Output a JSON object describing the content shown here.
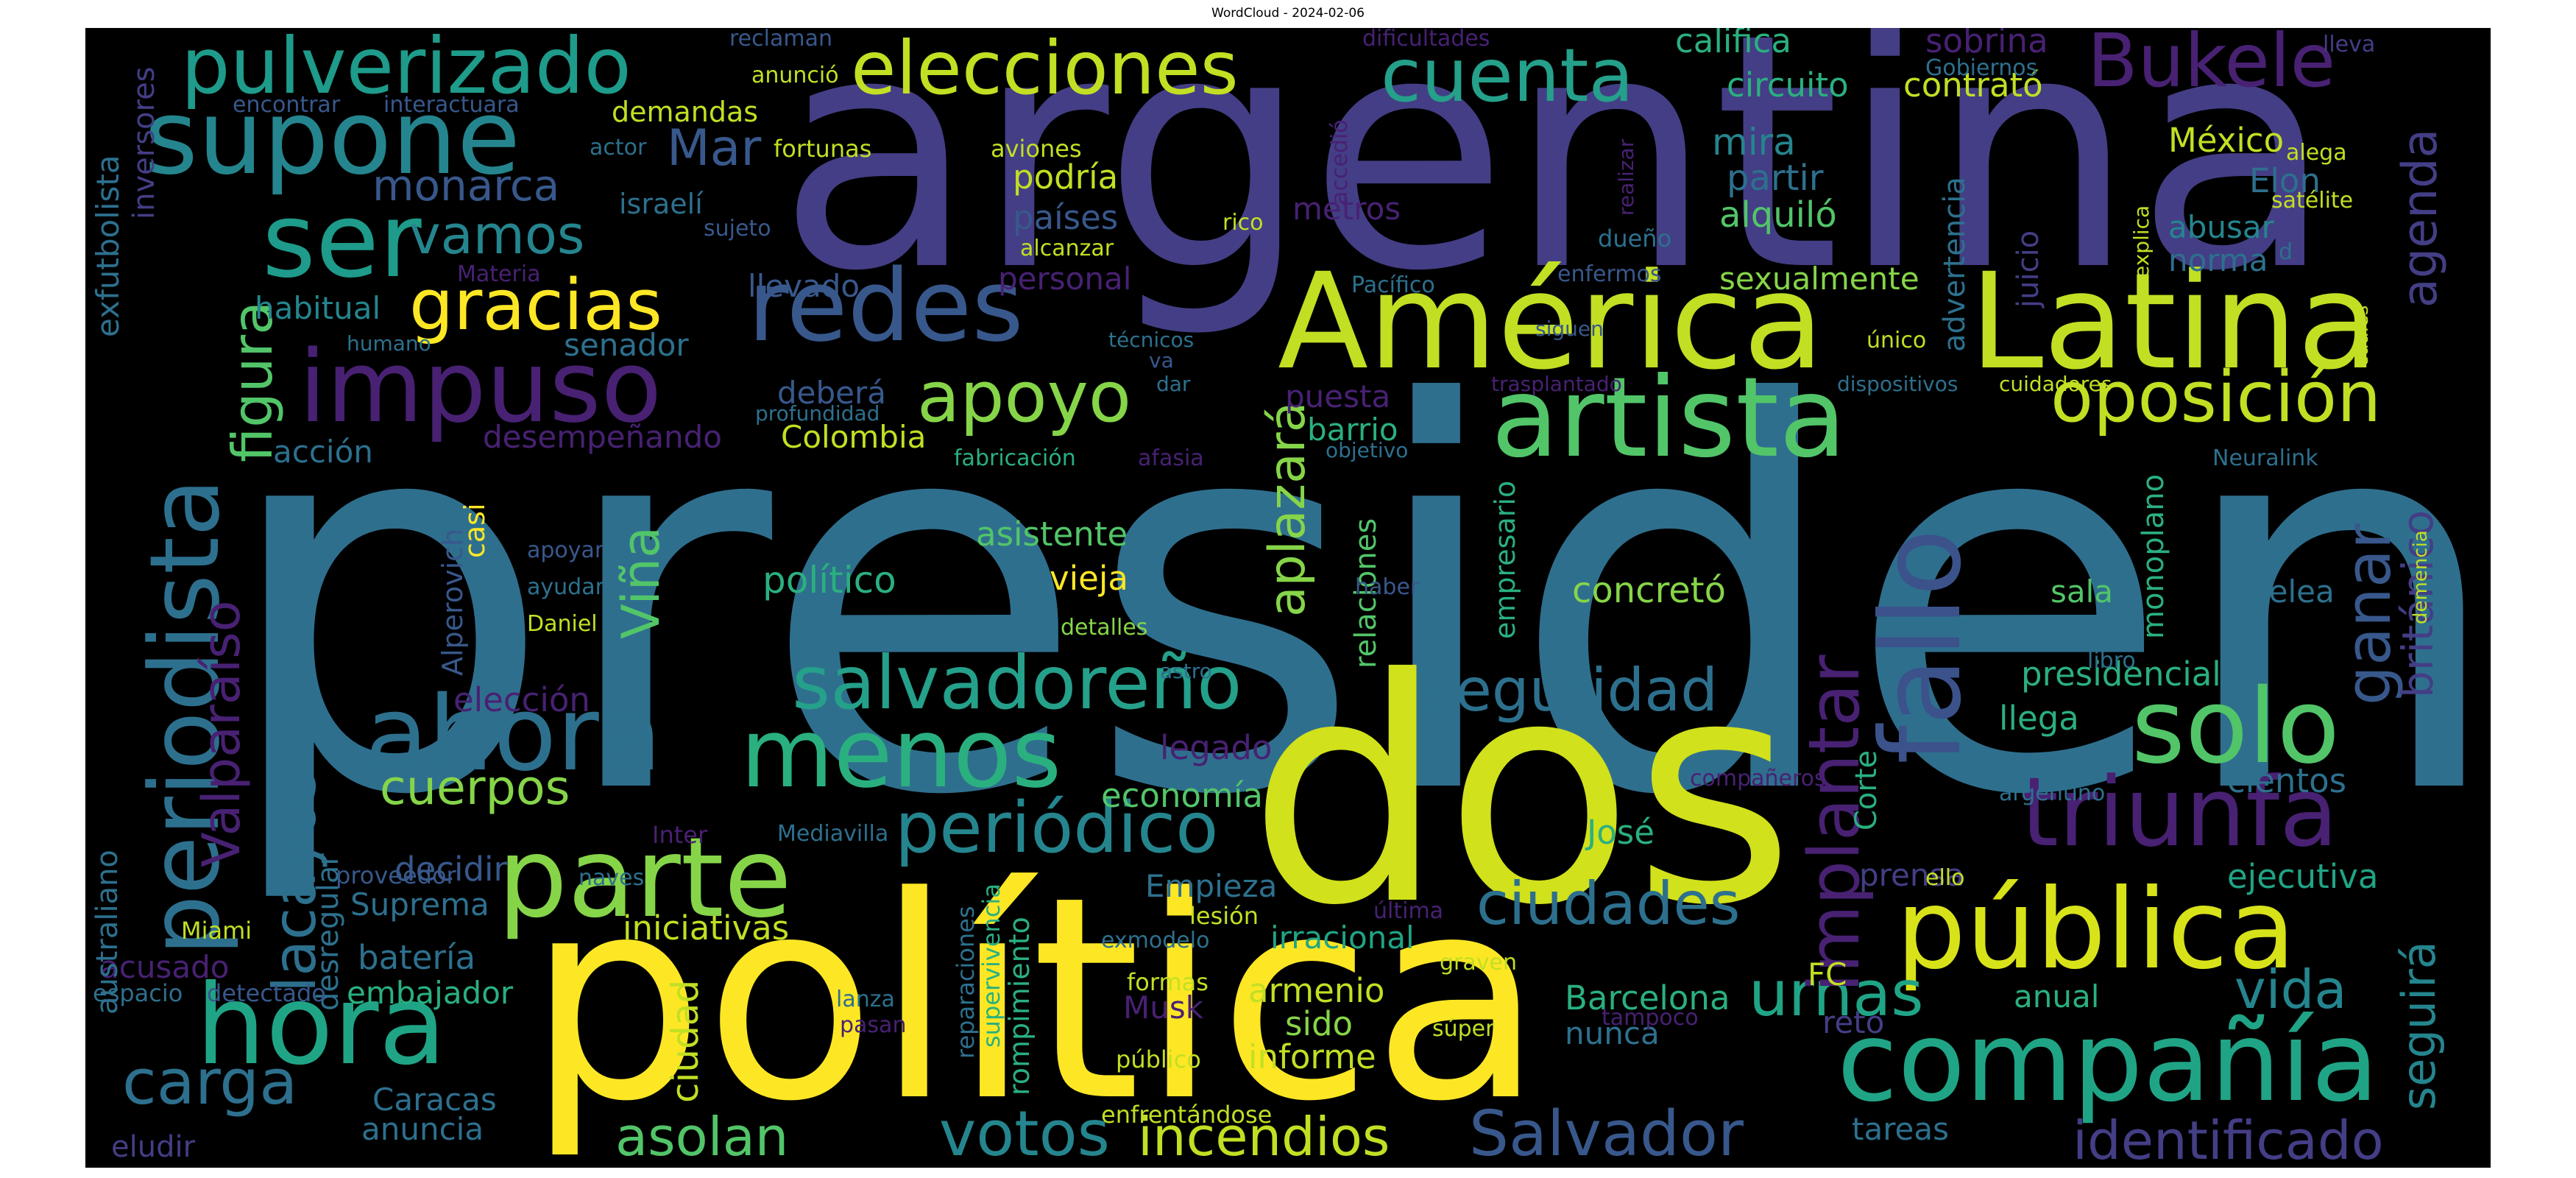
{
  "title": "WordCloud - 2024-02-06",
  "palette": [
    "#fde725",
    "#c2df23",
    "#86d549",
    "#52c569",
    "#2ab07f",
    "#1e9b8a",
    "#25858e",
    "#2d708e",
    "#38588c",
    "#433e85",
    "#482173",
    "#440154"
  ],
  "words": [
    {
      "text": "presidente",
      "color": "#2f6f8e"
    },
    {
      "text": "argentina",
      "color": "#433e85"
    },
    {
      "text": "política",
      "color": "#fde725"
    },
    {
      "text": "dos",
      "color": "#d1e11c"
    },
    {
      "text": "América",
      "color": "#c2df23"
    },
    {
      "text": "Latina",
      "color": "#c2df23"
    },
    {
      "text": "artista",
      "color": "#52c569"
    },
    {
      "text": "compañía",
      "color": "#20a486"
    },
    {
      "text": "pública",
      "color": "#d8e219"
    },
    {
      "text": "parte",
      "color": "#86d549"
    },
    {
      "text": "hora",
      "color": "#20a486"
    },
    {
      "text": "ahora",
      "color": "#2d708e"
    },
    {
      "text": "menos",
      "color": "#2ab07f"
    },
    {
      "text": "redes",
      "color": "#38588c"
    },
    {
      "text": "impuso",
      "color": "#482173"
    },
    {
      "text": "periodista",
      "color": "#2d708e"
    },
    {
      "text": "supone",
      "color": "#25858e"
    },
    {
      "text": "pulverizado",
      "color": "#1e9b8a"
    },
    {
      "text": "elecciones",
      "color": "#c2df23"
    },
    {
      "text": "cuenta",
      "color": "#25a08a"
    },
    {
      "text": "Bukele",
      "color": "#482173"
    },
    {
      "text": "ser",
      "color": "#1e9b8a"
    },
    {
      "text": "fallo",
      "color": "#3b528b"
    },
    {
      "text": "solo",
      "color": "#52c569"
    },
    {
      "text": "triunfa",
      "color": "#482173"
    },
    {
      "text": "oposición",
      "color": "#c2df23"
    },
    {
      "text": "salvadoreño",
      "color": "#25a08a"
    },
    {
      "text": "periódico",
      "color": "#25858e"
    },
    {
      "text": "votos",
      "color": "#25858e"
    },
    {
      "text": "Salvador",
      "color": "#38588c"
    },
    {
      "text": "urnas",
      "color": "#20a486"
    },
    {
      "text": "carga",
      "color": "#2d708e"
    },
    {
      "text": "apoyo",
      "color": "#86d549"
    },
    {
      "text": "gracias",
      "color": "#fde725"
    },
    {
      "text": "vamos",
      "color": "#25858e"
    },
    {
      "text": "incendios",
      "color": "#c2df23"
    },
    {
      "text": "asolan",
      "color": "#52c569"
    },
    {
      "text": "implantar",
      "color": "#482173"
    },
    {
      "text": "ganar",
      "color": "#38588c"
    },
    {
      "text": "identificado",
      "color": "#433e85"
    },
    {
      "text": "seguridad",
      "color": "#2d708e"
    },
    {
      "text": "ciudades",
      "color": "#2d708e"
    },
    {
      "text": "vida",
      "color": "#25858e"
    },
    {
      "text": "agenda",
      "color": "#433e85"
    },
    {
      "text": "británico",
      "color": "#433e85"
    },
    {
      "text": "seguirá",
      "color": "#25858e"
    },
    {
      "text": "lacayos",
      "color": "#2d708e"
    },
    {
      "text": "figura",
      "color": "#52c569"
    },
    {
      "text": "Valparaíso",
      "color": "#482173"
    },
    {
      "text": "cuerpos",
      "color": "#86d549"
    },
    {
      "text": "monarca",
      "color": "#38588c"
    },
    {
      "text": "Mar",
      "color": "#38588c"
    },
    {
      "text": "aplazará",
      "color": "#86d549"
    },
    {
      "text": "Viña",
      "color": "#52c569"
    },
    {
      "text": "califica",
      "color": "#2ab07f"
    },
    {
      "text": "sobrina",
      "color": "#482173"
    },
    {
      "text": "circuito",
      "color": "#2ab07f"
    },
    {
      "text": "contrató",
      "color": "#c2df23"
    },
    {
      "text": "mira",
      "color": "#25858e"
    },
    {
      "text": "partir",
      "color": "#2d708e"
    },
    {
      "text": "alquiló",
      "color": "#52c569"
    },
    {
      "text": "México",
      "color": "#c2df23"
    },
    {
      "text": "Elon",
      "color": "#2d708e"
    },
    {
      "text": "abusar",
      "color": "#25858e"
    },
    {
      "text": "norma",
      "color": "#2d708e"
    },
    {
      "text": "sexualmente",
      "color": "#86d549"
    },
    {
      "text": "podría",
      "color": "#c2df23"
    },
    {
      "text": "países",
      "color": "#38588c"
    },
    {
      "text": "metros",
      "color": "#482173"
    },
    {
      "text": "personal",
      "color": "#482173"
    },
    {
      "text": "llevado",
      "color": "#38588c"
    },
    {
      "text": "habitual",
      "color": "#25858e"
    },
    {
      "text": "senador",
      "color": "#2d708e"
    },
    {
      "text": "deberá",
      "color": "#38588c"
    },
    {
      "text": "puesta",
      "color": "#482173"
    },
    {
      "text": "barrio",
      "color": "#2ab07f"
    },
    {
      "text": "Colombia",
      "color": "#c2df23"
    },
    {
      "text": "desempeñando",
      "color": "#482173"
    },
    {
      "text": "acción",
      "color": "#2d708e"
    },
    {
      "text": "asistente",
      "color": "#52c569"
    },
    {
      "text": "político",
      "color": "#2ab07f"
    },
    {
      "text": "vieja",
      "color": "#fde725"
    },
    {
      "text": "concretó",
      "color": "#86d549"
    },
    {
      "text": "sala",
      "color": "#52c569"
    },
    {
      "text": "pelea",
      "color": "#2d708e"
    },
    {
      "text": "presidencial",
      "color": "#2ab07f"
    },
    {
      "text": "llega",
      "color": "#2ab07f"
    },
    {
      "text": "cientos",
      "color": "#2d708e"
    },
    {
      "text": "ejecutiva",
      "color": "#20a486"
    },
    {
      "text": "elección",
      "color": "#482173"
    },
    {
      "text": "legado",
      "color": "#482173"
    },
    {
      "text": "economía",
      "color": "#52c569"
    },
    {
      "text": "José",
      "color": "#2ab07f"
    },
    {
      "text": "decidir",
      "color": "#38588c"
    },
    {
      "text": "Suprema",
      "color": "#2d708e"
    },
    {
      "text": "Empieza",
      "color": "#2d708e"
    },
    {
      "text": "iniciativas",
      "color": "#c2df23"
    },
    {
      "text": "irracional",
      "color": "#20a486"
    },
    {
      "text": "batería",
      "color": "#2d708e"
    },
    {
      "text": "acusado",
      "color": "#482173"
    },
    {
      "text": "embajador",
      "color": "#2ab07f"
    },
    {
      "text": "armenio",
      "color": "#c2df23"
    },
    {
      "text": "sido",
      "color": "#86d549"
    },
    {
      "text": "informe",
      "color": "#c2df23"
    },
    {
      "text": "Barcelona",
      "color": "#2ab07f"
    },
    {
      "text": "nunca",
      "color": "#2d708e"
    },
    {
      "text": "prensa",
      "color": "#433e85"
    },
    {
      "text": "reto",
      "color": "#433e85"
    },
    {
      "text": "anual",
      "color": "#2ab07f"
    },
    {
      "text": "tareas",
      "color": "#2d708e"
    },
    {
      "text": "Caracas",
      "color": "#2d708e"
    },
    {
      "text": "anuncia",
      "color": "#2d708e"
    },
    {
      "text": "eludir",
      "color": "#433e85"
    },
    {
      "text": "Musk",
      "color": "#482173"
    },
    {
      "text": "FC",
      "color": "#c2df23"
    },
    {
      "text": "reclaman",
      "color": "#38588c"
    },
    {
      "text": "anunció",
      "color": "#c2df23"
    },
    {
      "text": "encontrar",
      "color": "#38588c"
    },
    {
      "text": "interactuara",
      "color": "#38588c"
    },
    {
      "text": "demandas",
      "color": "#c2df23"
    },
    {
      "text": "actor",
      "color": "#2d708e"
    },
    {
      "text": "fortunas",
      "color": "#c2df23"
    },
    {
      "text": "aviones",
      "color": "#c2df23"
    },
    {
      "text": "israelí",
      "color": "#2d708e"
    },
    {
      "text": "sujeto",
      "color": "#38588c"
    },
    {
      "text": "Materia",
      "color": "#482173"
    },
    {
      "text": "alcanzar",
      "color": "#c2df23"
    },
    {
      "text": "rico",
      "color": "#c2df23"
    },
    {
      "text": "accedió",
      "color": "#482173"
    },
    {
      "text": "dificultades",
      "color": "#482173"
    },
    {
      "text": "Gobiernos",
      "color": "#2d708e"
    },
    {
      "text": "lleva",
      "color": "#433e85"
    },
    {
      "text": "alega",
      "color": "#c2df23"
    },
    {
      "text": "satélite",
      "color": "#c2df23"
    },
    {
      "text": "explica",
      "color": "#c2df23"
    },
    {
      "text": "realizar",
      "color": "#482173"
    },
    {
      "text": "dueño",
      "color": "#2d708e"
    },
    {
      "text": "advertencia",
      "color": "#2d708e"
    },
    {
      "text": "juicio",
      "color": "#433e85"
    },
    {
      "text": "enfermos",
      "color": "#38588c"
    },
    {
      "text": "Pacífico",
      "color": "#2d708e"
    },
    {
      "text": "único",
      "color": "#c2df23"
    },
    {
      "text": "siguen",
      "color": "#38588c"
    },
    {
      "text": "trasplantado",
      "color": "#482173"
    },
    {
      "text": "dispositivos",
      "color": "#2d708e"
    },
    {
      "text": "cuidadores",
      "color": "#c2df23"
    },
    {
      "text": "cuales",
      "color": "#c2df23"
    },
    {
      "text": "Neuralink",
      "color": "#2d708e"
    },
    {
      "text": "demencia",
      "color": "#c2df23"
    },
    {
      "text": "humano",
      "color": "#2d708e"
    },
    {
      "text": "técnicos",
      "color": "#2d708e"
    },
    {
      "text": "va",
      "color": "#38588c"
    },
    {
      "text": "dar",
      "color": "#2d708e"
    },
    {
      "text": "profundidad",
      "color": "#2d708e"
    },
    {
      "text": "fabricación",
      "color": "#2ab07f"
    },
    {
      "text": "afasia",
      "color": "#482173"
    },
    {
      "text": "objetivo",
      "color": "#2d708e"
    },
    {
      "text": "relaciones",
      "color": "#52c569"
    },
    {
      "text": "empresario",
      "color": "#2ab07f"
    },
    {
      "text": "monoplano",
      "color": "#2ab07f"
    },
    {
      "text": "Alperovich",
      "color": "#38588c"
    },
    {
      "text": "casi",
      "color": "#fde725"
    },
    {
      "text": "apoyar",
      "color": "#38588c"
    },
    {
      "text": "ayudar",
      "color": "#2d708e"
    },
    {
      "text": "Daniel",
      "color": "#c2df23"
    },
    {
      "text": "haber",
      "color": "#38588c"
    },
    {
      "text": "detalles",
      "color": "#86d549"
    },
    {
      "text": "astro",
      "color": "#2d708e"
    },
    {
      "text": "libro",
      "color": "#2d708e"
    },
    {
      "text": "compañeros",
      "color": "#482173"
    },
    {
      "text": "brasileño",
      "color": "#2d708e"
    },
    {
      "text": "argentino",
      "color": "#2d708e"
    },
    {
      "text": "Corte",
      "color": "#2ab07f"
    },
    {
      "text": "exfutbolista",
      "color": "#2d708e"
    },
    {
      "text": "inversores",
      "color": "#433e85"
    },
    {
      "text": "australiano",
      "color": "#2d708e"
    },
    {
      "text": "Inter",
      "color": "#482173"
    },
    {
      "text": "proveedor",
      "color": "#38588c"
    },
    {
      "text": "naves",
      "color": "#2d708e"
    },
    {
      "text": "Mediavilla",
      "color": "#2d708e"
    },
    {
      "text": "desregular",
      "color": "#2d708e"
    },
    {
      "text": "Miami",
      "color": "#c2df23"
    },
    {
      "text": "espacio",
      "color": "#2d708e"
    },
    {
      "text": "detectado",
      "color": "#38588c"
    },
    {
      "text": "lanza",
      "color": "#2d708e"
    },
    {
      "text": "pasan",
      "color": "#482173"
    },
    {
      "text": "reparaciones",
      "color": "#2d708e"
    },
    {
      "text": "supervivencia",
      "color": "#2ab07f"
    },
    {
      "text": "rompimiento",
      "color": "#2ab07f"
    },
    {
      "text": "exmodelo",
      "color": "#2d708e"
    },
    {
      "text": "lesión",
      "color": "#c2df23"
    },
    {
      "text": "última",
      "color": "#482173"
    },
    {
      "text": "formas",
      "color": "#c2df23"
    },
    {
      "text": "público",
      "color": "#c2df23"
    },
    {
      "text": "enfrentándose",
      "color": "#c2df23"
    },
    {
      "text": "graven",
      "color": "#c2df23"
    },
    {
      "text": "súper",
      "color": "#c2df23"
    },
    {
      "text": "tampoco",
      "color": "#482173"
    },
    {
      "text": "ello",
      "color": "#c2df23"
    },
    {
      "text": "d",
      "color": "#2d708e"
    },
    {
      "text": "ciudad",
      "color": "#c2df23"
    }
  ]
}
